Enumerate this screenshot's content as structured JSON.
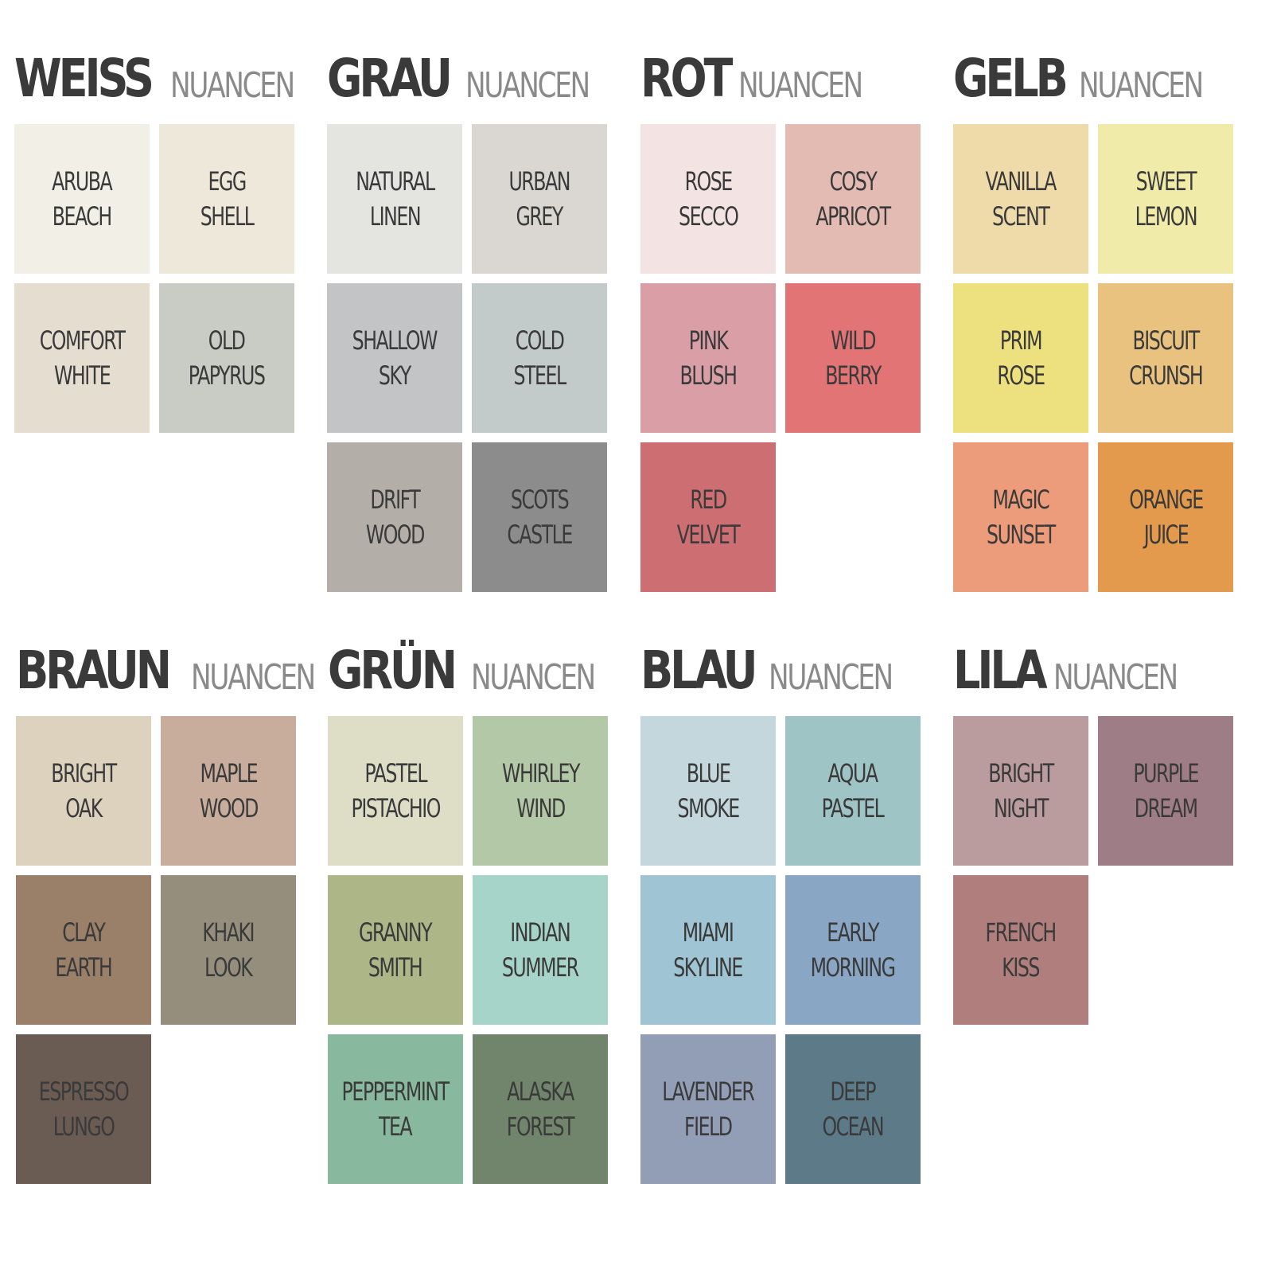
{
  "text_color": "#3a3a3a",
  "suffix_color": "#8a8a8a",
  "groups": [
    {
      "name": "WEISS",
      "suffix": "NUANCEN",
      "swatches": [
        {
          "label": "ARUBA\nBEACH",
          "color": "#f1efe6"
        },
        {
          "label": "EGG\nSHELL",
          "color": "#eee8da"
        },
        {
          "label": "COMFORT\nWHITE",
          "color": "#e4ddd0"
        },
        {
          "label": "OLD\nPAPYRUS",
          "color": "#c9cbc5"
        }
      ]
    },
    {
      "name": "GRAU",
      "suffix": "NUANCEN",
      "swatches": [
        {
          "label": "NATURAL\nLINEN",
          "color": "#e4e5e0"
        },
        {
          "label": "URBAN\nGREY",
          "color": "#dad6d1"
        },
        {
          "label": "SHALLOW\nSKY",
          "color": "#c2c4c6"
        },
        {
          "label": "COLD\nSTEEL",
          "color": "#c2cbc9"
        },
        {
          "label": "DRIFT\nWOOD",
          "color": "#b3aea8"
        },
        {
          "label": "SCOTS\nCASTLE",
          "color": "#8d8c8d"
        }
      ]
    },
    {
      "name": "ROT",
      "suffix": "NUANCEN",
      "swatches": [
        {
          "label": "ROSE\nSECCO",
          "color": "#f4e3e3"
        },
        {
          "label": "COSY\nAPRICOT",
          "color": "#e3bbb3"
        },
        {
          "label": "PINK\nBLUSH",
          "color": "#d99ea6"
        },
        {
          "label": "WILD\nBERRY",
          "color": "#e37476"
        },
        {
          "label": "RED\nVELVET",
          "color": "#cc6e72"
        }
      ]
    },
    {
      "name": "GELB",
      "suffix": "NUANCEN",
      "swatches": [
        {
          "label": "VANILLA\nSCENT",
          "color": "#eedba9"
        },
        {
          "label": "SWEET\nLEMON",
          "color": "#f0eba8"
        },
        {
          "label": "PRIM\nROSE",
          "color": "#ece07f"
        },
        {
          "label": "BISCUIT\nCRUNSH",
          "color": "#e8c27e"
        },
        {
          "label": "MAGIC\nSUNSET",
          "color": "#ec9c7a"
        },
        {
          "label": "ORANGE\nJUICE",
          "color": "#e39a4d"
        }
      ]
    },
    {
      "name": "BRAUN",
      "suffix": "NUANCEN",
      "swatches": [
        {
          "label": "BRIGHT\nOAK",
          "color": "#ddd2be"
        },
        {
          "label": "MAPLE\nWOOD",
          "color": "#c9ad9c"
        },
        {
          "label": "CLAY\nEARTH",
          "color": "#9a7f69"
        },
        {
          "label": "KHAKI\nLOOK",
          "color": "#958e7c"
        },
        {
          "label": "ESPRESSO\nLUNGO",
          "color": "#6b5c53"
        }
      ]
    },
    {
      "name": "GRÜN",
      "suffix": "NUANCEN",
      "swatches": [
        {
          "label": "PASTEL\nPISTACHIO",
          "color": "#dedec6"
        },
        {
          "label": "WHIRLEY\nWIND",
          "color": "#b3c8a7"
        },
        {
          "label": "GRANNY\nSMITH",
          "color": "#adb687"
        },
        {
          "label": "INDIAN\nSUMMER",
          "color": "#a6d4c8"
        },
        {
          "label": "PEPPERMINT\nTEA",
          "color": "#88b89d"
        },
        {
          "label": "ALASKA\nFOREST",
          "color": "#71856c"
        }
      ]
    },
    {
      "name": "BLAU",
      "suffix": "NUANCEN",
      "swatches": [
        {
          "label": "BLUE\nSMOKE",
          "color": "#c3d7dc"
        },
        {
          "label": "AQUA\nPASTEL",
          "color": "#9fc4c5"
        },
        {
          "label": "MIAMI\nSKYLINE",
          "color": "#9fc4d3"
        },
        {
          "label": "EARLY\nMORNING",
          "color": "#89a6c4"
        },
        {
          "label": "LAVENDER\nFIELD",
          "color": "#929eb5"
        },
        {
          "label": "DEEP\nOCEAN",
          "color": "#5c7a87"
        }
      ]
    },
    {
      "name": "LILA",
      "suffix": "NUANCEN",
      "swatches": [
        {
          "label": "BRIGHT\nNIGHT",
          "color": "#ba9c9e"
        },
        {
          "label": "PURPLE\nDREAM",
          "color": "#9e7d86"
        },
        {
          "label": "FRENCH\nKISS",
          "color": "#b07e7c"
        }
      ]
    }
  ]
}
